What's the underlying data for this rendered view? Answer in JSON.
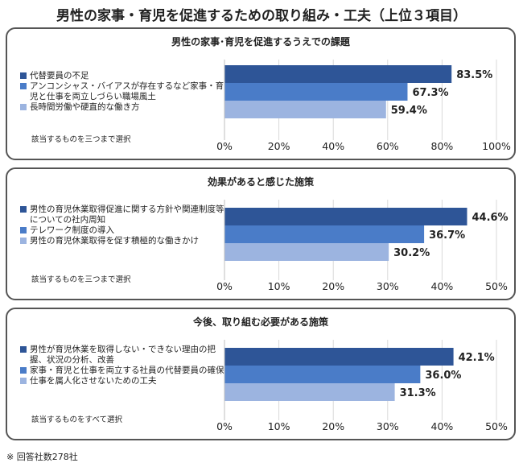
{
  "title": "男性の家事・育児を促進するための取り組み・工夫（上位３項目）",
  "footnote": "※ 回答社数278社",
  "chart_data": [
    {
      "type": "bar",
      "orientation": "horizontal",
      "title": "男性の家事･育児を促進するうえでの課題",
      "note": "該当するものを三つまで選択",
      "xlim": [
        0,
        100
      ],
      "ticks": [
        "0%",
        "20%",
        "40%",
        "60%",
        "80%",
        "100%"
      ],
      "tick_values": [
        0,
        20,
        40,
        60,
        80,
        100
      ],
      "grid": true,
      "series": [
        {
          "name": "代替要員の不足",
          "value": 83.5,
          "label": "83.5%",
          "color": "#2E5597"
        },
        {
          "name": "アンコンシャス・バイアスが存在するなど家事・育児と仕事を両立しづらい職場風土",
          "value": 67.3,
          "label": "67.3%",
          "color": "#4A7CC8"
        },
        {
          "name": "長時間労働や硬直的な働き方",
          "value": 59.4,
          "label": "59.4%",
          "color": "#9CB4E0"
        }
      ]
    },
    {
      "type": "bar",
      "orientation": "horizontal",
      "title": "効果があると感じた施策",
      "note": "該当するものを三つまで選択",
      "xlim": [
        0,
        50
      ],
      "ticks": [
        "0%",
        "10%",
        "20%",
        "30%",
        "40%",
        "50%"
      ],
      "tick_values": [
        0,
        10,
        20,
        30,
        40,
        50
      ],
      "grid": true,
      "series": [
        {
          "name": "男性の育児休業取得促進に関する方針や関連制度等についての社内周知",
          "value": 44.6,
          "label": "44.6%",
          "color": "#2E5597"
        },
        {
          "name": "テレワーク制度の導入",
          "value": 36.7,
          "label": "36.7%",
          "color": "#4A7CC8"
        },
        {
          "name": "男性の育児休業取得を促す積極的な働きかけ",
          "value": 30.2,
          "label": "30.2%",
          "color": "#9CB4E0"
        }
      ]
    },
    {
      "type": "bar",
      "orientation": "horizontal",
      "title": "今後、取り組む必要がある施策",
      "note": "該当するものをすべて選択",
      "xlim": [
        0,
        50
      ],
      "ticks": [
        "0%",
        "10%",
        "20%",
        "30%",
        "40%",
        "50%"
      ],
      "tick_values": [
        0,
        10,
        20,
        30,
        40,
        50
      ],
      "grid": true,
      "series": [
        {
          "name": "男性が育児休業を取得しない・できない理由の把握、状況の分析、改善",
          "value": 42.1,
          "label": "42.1%",
          "color": "#2E5597"
        },
        {
          "name": "家事・育児と仕事を両立する社員の代替要員の確保",
          "value": 36.0,
          "label": "36.0%",
          "color": "#4A7CC8"
        },
        {
          "name": "仕事を属人化させないための工夫",
          "value": 31.3,
          "label": "31.3%",
          "color": "#9CB4E0"
        }
      ]
    }
  ]
}
